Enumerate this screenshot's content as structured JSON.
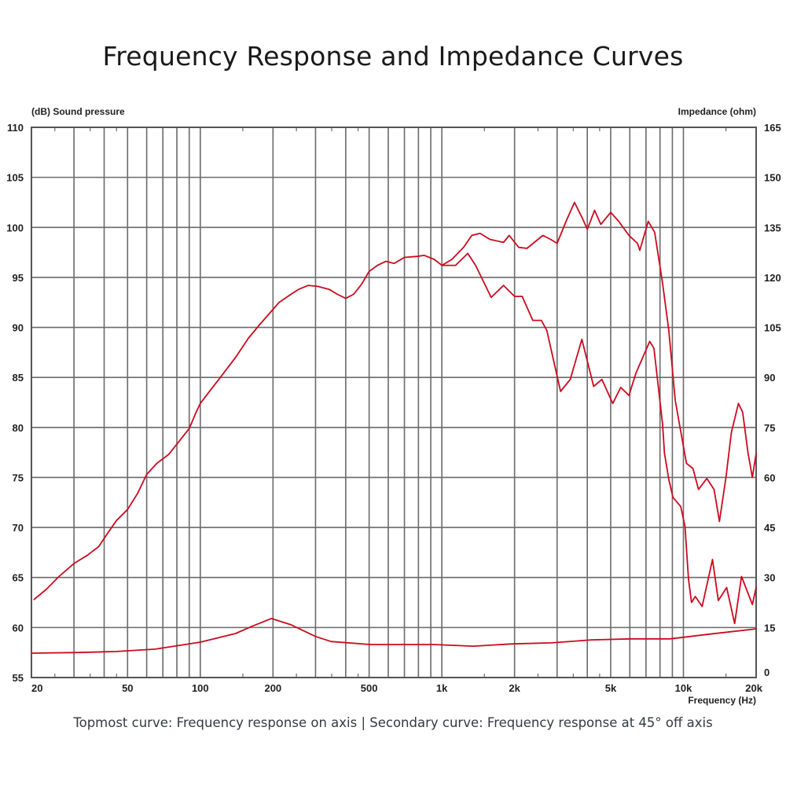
{
  "title": "Frequency Response and Impedance Curves",
  "caption": "Topmost curve: Frequency response on axis | Secondary curve: Frequency response at 45° off axis",
  "chart_data": {
    "type": "line",
    "title": "Frequency Response and Impedance Curves",
    "xlabel": "Frequency  (Hz)",
    "ylabel": "(dB)  Sound pressure",
    "y2label": "Impedance  (ohm)",
    "xscale": "log",
    "xlim": [
      20,
      20000
    ],
    "ylim": [
      55,
      110
    ],
    "y2lim": [
      0,
      165
    ],
    "grid": true,
    "x_ticks": [
      {
        "value": 20,
        "label": "20"
      },
      {
        "value": 50,
        "label": "50"
      },
      {
        "value": 100,
        "label": "100"
      },
      {
        "value": 200,
        "label": "200"
      },
      {
        "value": 500,
        "label": "500"
      },
      {
        "value": 1000,
        "label": "1k"
      },
      {
        "value": 2000,
        "label": "2k"
      },
      {
        "value": 5000,
        "label": "5k"
      },
      {
        "value": 10000,
        "label": "10k"
      },
      {
        "value": 20000,
        "label": "20k"
      }
    ],
    "x_gridlines": [
      30,
      40,
      50,
      60,
      70,
      80,
      90,
      100,
      200,
      300,
      400,
      500,
      600,
      700,
      800,
      900,
      1000,
      2000,
      3000,
      4000,
      5000,
      6000,
      7000,
      8000,
      9000,
      10000
    ],
    "y_ticks": [
      "110",
      "105",
      "100",
      "95",
      "90",
      "85",
      "80",
      "75",
      "70",
      "65",
      "60",
      "55"
    ],
    "y2_ticks": [
      "165",
      "150",
      "135",
      "120",
      "105",
      "90",
      "75",
      "60",
      "45",
      "30",
      "15",
      "0"
    ],
    "line_color": "#cc0a1e",
    "series": [
      {
        "name": "Frequency response on axis",
        "axis": "left",
        "points": [
          [
            20.5,
            62.8
          ],
          [
            23,
            63.8
          ],
          [
            26,
            65.1
          ],
          [
            30,
            66.4
          ],
          [
            34,
            67.2
          ],
          [
            38,
            68.1
          ],
          [
            41,
            69.3
          ],
          [
            45,
            70.7
          ],
          [
            50,
            71.8
          ],
          [
            55,
            73.4
          ],
          [
            60,
            75.3
          ],
          [
            66,
            76.4
          ],
          [
            74,
            77.3
          ],
          [
            81,
            78.5
          ],
          [
            90,
            79.9
          ],
          [
            96,
            81.5
          ],
          [
            100,
            82.4
          ],
          [
            110,
            83.7
          ],
          [
            121,
            85.0
          ],
          [
            140,
            87.0
          ],
          [
            158,
            88.9
          ],
          [
            175,
            90.2
          ],
          [
            200,
            91.8
          ],
          [
            212,
            92.5
          ],
          [
            237,
            93.3
          ],
          [
            255,
            93.8
          ],
          [
            280,
            94.2
          ],
          [
            307,
            94.1
          ],
          [
            342,
            93.8
          ],
          [
            370,
            93.3
          ],
          [
            400,
            92.9
          ],
          [
            431,
            93.3
          ],
          [
            465,
            94.3
          ],
          [
            500,
            95.6
          ],
          [
            541,
            96.2
          ],
          [
            587,
            96.6
          ],
          [
            635,
            96.4
          ],
          [
            700,
            97.0
          ],
          [
            790,
            97.1
          ],
          [
            846,
            97.2
          ],
          [
            930,
            96.8
          ],
          [
            1000,
            96.2
          ],
          [
            1100,
            96.8
          ],
          [
            1230,
            98.0
          ],
          [
            1330,
            99.2
          ],
          [
            1440,
            99.4
          ],
          [
            1580,
            98.8
          ],
          [
            1800,
            98.5
          ],
          [
            1900,
            99.2
          ],
          [
            2080,
            98.0
          ],
          [
            2250,
            97.9
          ],
          [
            2620,
            99.2
          ],
          [
            2820,
            98.8
          ],
          [
            3000,
            98.4
          ],
          [
            3280,
            100.7
          ],
          [
            3540,
            102.5
          ],
          [
            3820,
            100.9
          ],
          [
            4000,
            99.8
          ],
          [
            4290,
            101.7
          ],
          [
            4550,
            100.3
          ],
          [
            5000,
            101.5
          ],
          [
            5400,
            100.6
          ],
          [
            5950,
            99.2
          ],
          [
            6450,
            98.4
          ],
          [
            6600,
            97.7
          ],
          [
            7150,
            100.6
          ],
          [
            7600,
            99.5
          ],
          [
            8200,
            94.4
          ],
          [
            8700,
            89.7
          ],
          [
            9250,
            82.7
          ],
          [
            9700,
            79.9
          ],
          [
            10300,
            76.4
          ],
          [
            10950,
            75.9
          ],
          [
            11550,
            73.8
          ],
          [
            12500,
            74.9
          ],
          [
            13400,
            73.8
          ],
          [
            14100,
            70.6
          ],
          [
            15000,
            75.0
          ],
          [
            15800,
            79.5
          ],
          [
            16900,
            82.4
          ],
          [
            17600,
            81.5
          ],
          [
            18500,
            77.5
          ],
          [
            19300,
            75.0
          ],
          [
            20000,
            77.4
          ]
        ]
      },
      {
        "name": "Frequency response at 45° off axis",
        "axis": "left",
        "points": [
          [
            1000,
            96.2
          ],
          [
            1140,
            96.2
          ],
          [
            1280,
            97.4
          ],
          [
            1380,
            96.2
          ],
          [
            1600,
            93.0
          ],
          [
            1800,
            94.2
          ],
          [
            2000,
            93.1
          ],
          [
            2150,
            93.1
          ],
          [
            2380,
            90.7
          ],
          [
            2580,
            90.7
          ],
          [
            2720,
            89.7
          ],
          [
            3100,
            83.6
          ],
          [
            3400,
            84.8
          ],
          [
            3800,
            88.8
          ],
          [
            4250,
            84.1
          ],
          [
            4600,
            84.8
          ],
          [
            5100,
            82.4
          ],
          [
            5500,
            84.0
          ],
          [
            5950,
            83.2
          ],
          [
            6350,
            85.4
          ],
          [
            7250,
            88.6
          ],
          [
            7550,
            87.9
          ],
          [
            8200,
            80.3
          ],
          [
            8350,
            77.4
          ],
          [
            8700,
            74.8
          ],
          [
            9050,
            73.0
          ],
          [
            9750,
            72.1
          ],
          [
            10150,
            70.1
          ],
          [
            10500,
            64.8
          ],
          [
            10800,
            62.5
          ],
          [
            11200,
            63.1
          ],
          [
            11950,
            62.1
          ],
          [
            13200,
            66.8
          ],
          [
            13950,
            62.7
          ],
          [
            15100,
            64.0
          ],
          [
            16300,
            60.4
          ],
          [
            17400,
            65.1
          ],
          [
            19300,
            62.3
          ],
          [
            20000,
            64.0
          ]
        ]
      },
      {
        "name": "Impedance",
        "axis": "right",
        "points": [
          [
            20,
            7.3
          ],
          [
            31,
            7.5
          ],
          [
            45,
            7.8
          ],
          [
            65,
            8.5
          ],
          [
            100,
            10.6
          ],
          [
            140,
            13.2
          ],
          [
            163,
            15.3
          ],
          [
            197,
            17.7
          ],
          [
            238,
            15.8
          ],
          [
            300,
            12.3
          ],
          [
            348,
            10.8
          ],
          [
            505,
            9.9
          ],
          [
            925,
            9.9
          ],
          [
            1350,
            9.4
          ],
          [
            1960,
            10.1
          ],
          [
            2850,
            10.4
          ],
          [
            4150,
            11.3
          ],
          [
            6050,
            11.6
          ],
          [
            8800,
            11.6
          ],
          [
            12800,
            13.0
          ],
          [
            20000,
            14.6
          ]
        ]
      }
    ]
  }
}
